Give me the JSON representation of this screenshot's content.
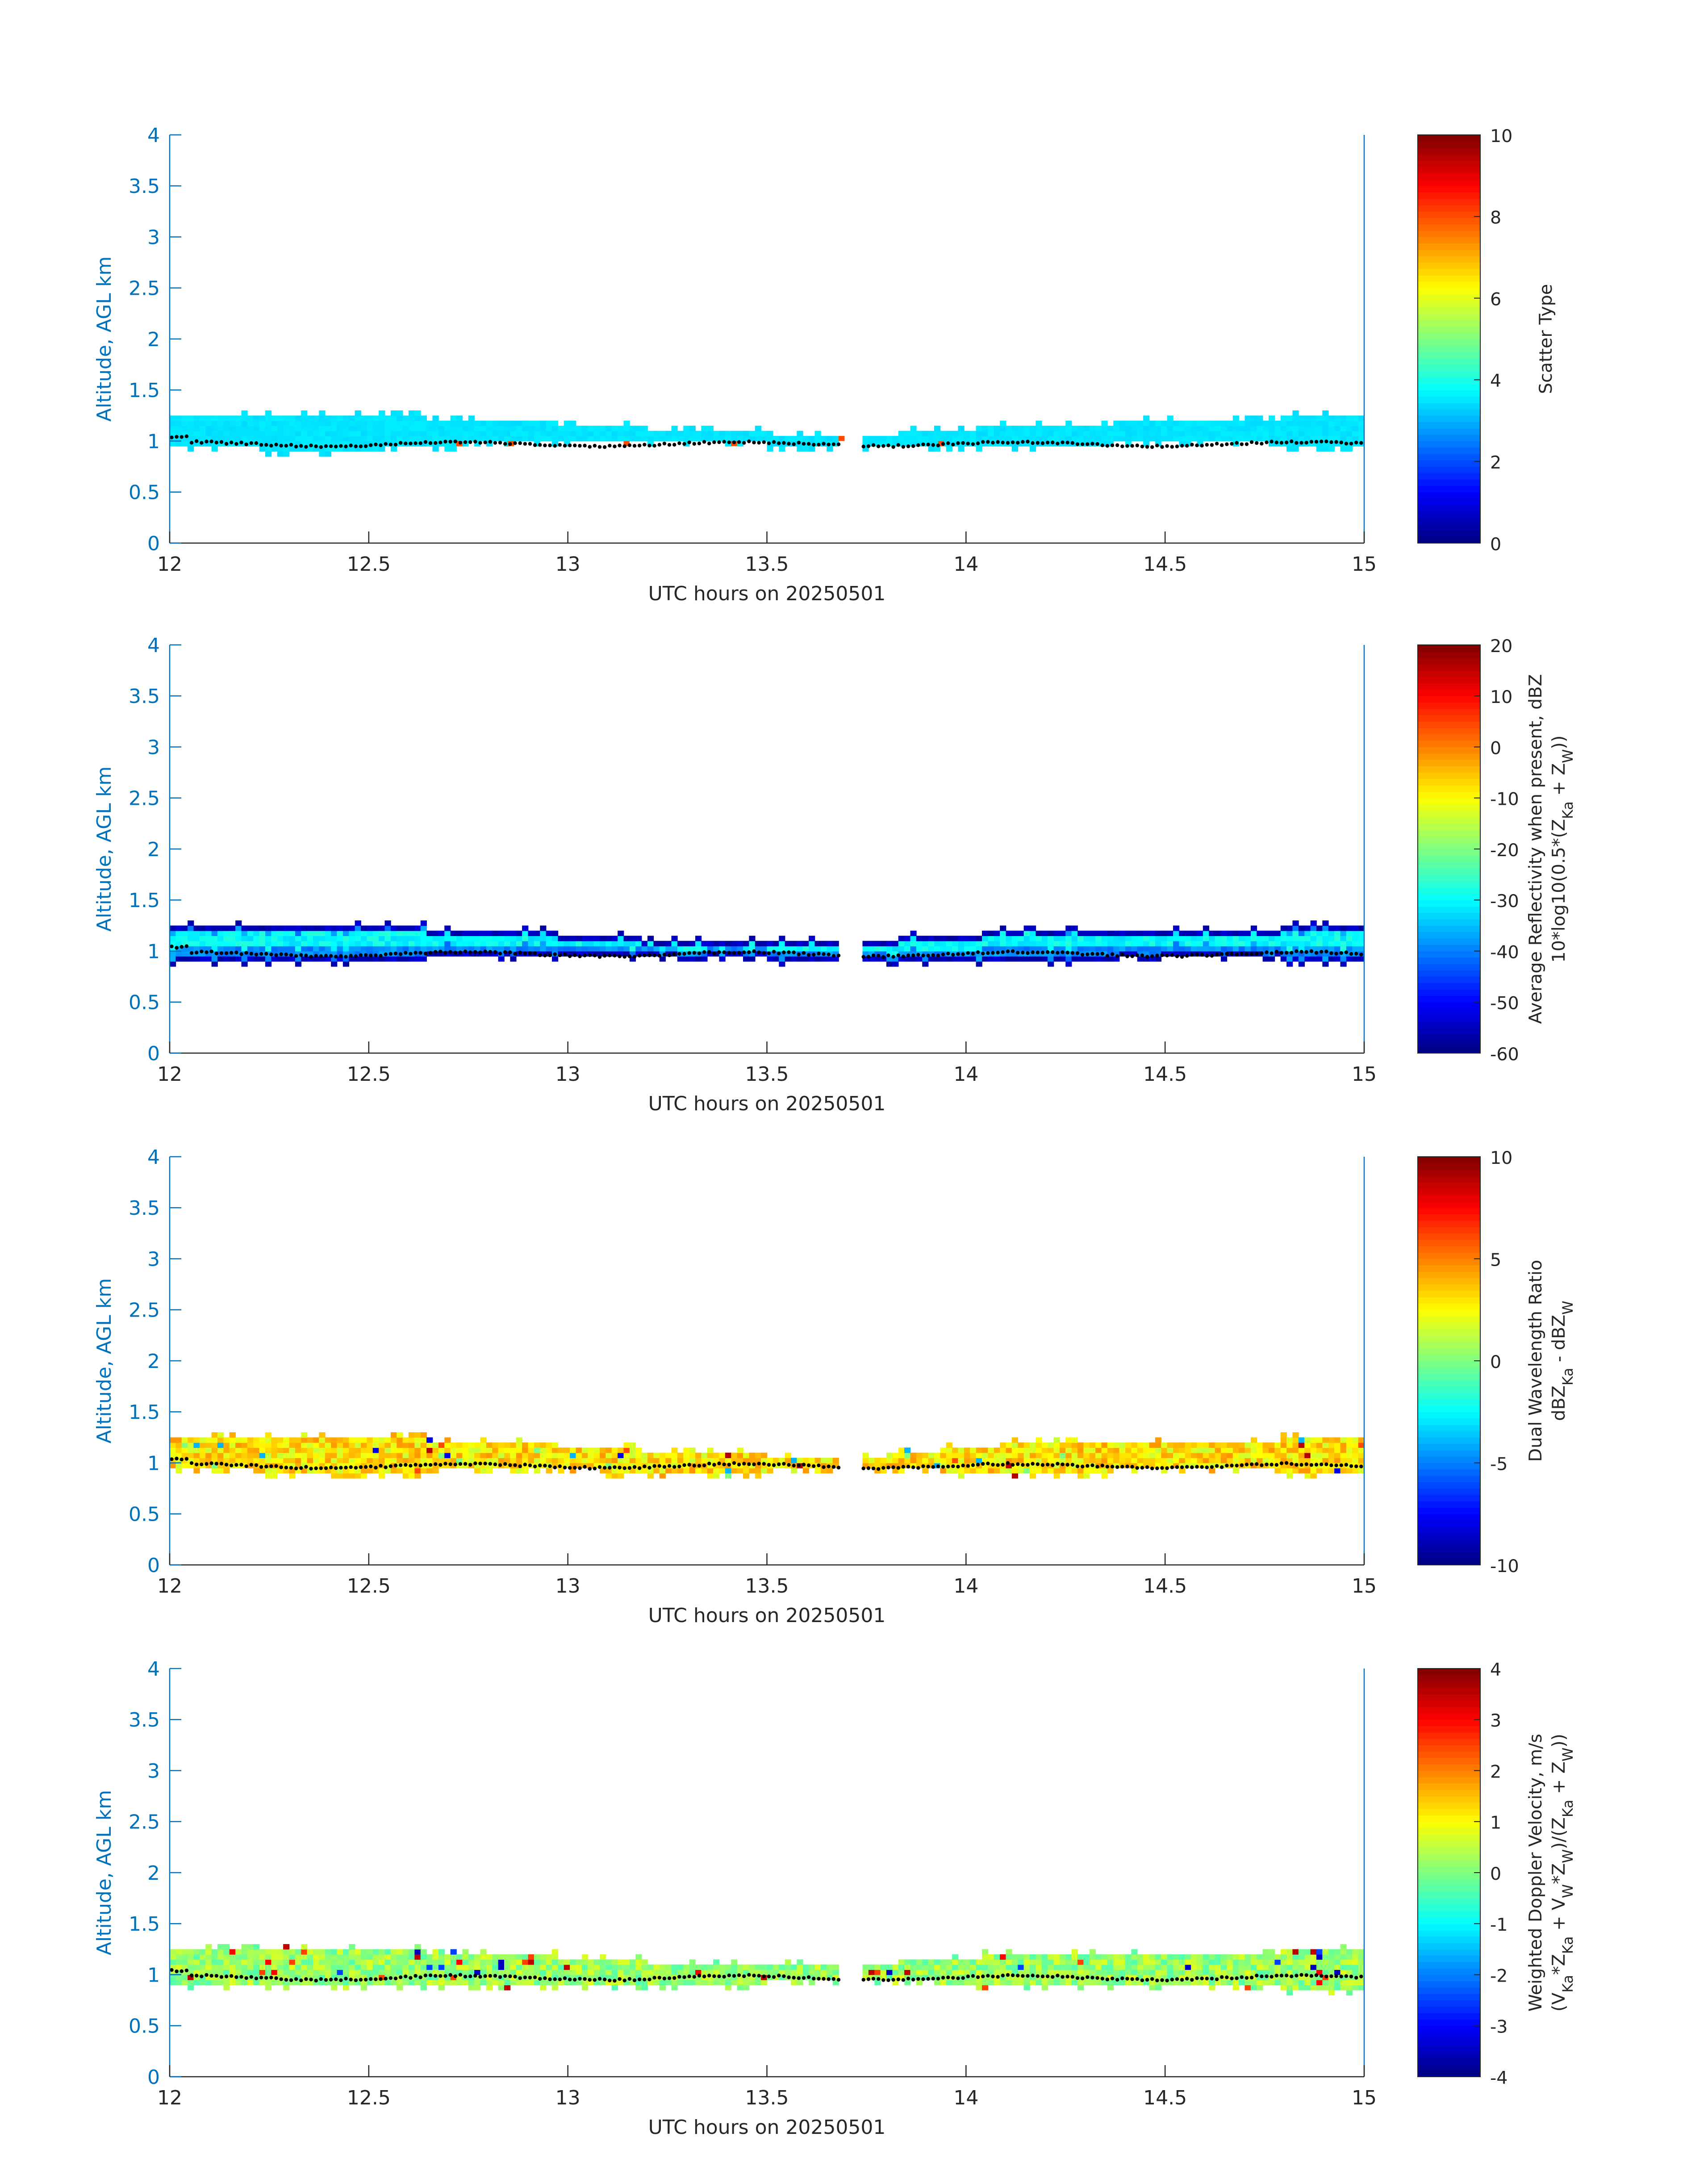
{
  "figure": {
    "colors": {
      "axis": "#0072bd",
      "text": "#262626",
      "gap_dots": "#000000"
    }
  },
  "chart_data": [
    {
      "type": "heatmap",
      "title": "",
      "xlabel": "UTC hours on 20250501",
      "ylabel": "Altitude, AGL km",
      "xlim": [
        12,
        15
      ],
      "ylim": [
        0,
        4
      ],
      "xticks": [
        "12",
        "12.5",
        "13",
        "13.5",
        "14",
        "14.5",
        "15"
      ],
      "yticks": [
        "0",
        "0.5",
        "1",
        "1.5",
        "2",
        "2.5",
        "3",
        "3.5",
        "4"
      ],
      "colorbar": {
        "label_lines": [
          "Scatter Type"
        ],
        "clim": [
          0,
          10
        ],
        "ticks": [
          "0",
          "2",
          "4",
          "6",
          "8",
          "10"
        ]
      },
      "layer": {
        "base_km": [
          0.95,
          0.9,
          1.0,
          1.0,
          0.95,
          0.95,
          1.0,
          0.95
        ],
        "top_km": [
          1.25,
          1.25,
          1.2,
          1.1,
          1.05,
          1.15,
          1.2,
          1.25
        ],
        "gaps_hr": [
          [
            13.69,
            13.74
          ]
        ]
      },
      "dominant_value": 3.5,
      "noise": 0.1,
      "sparse_values": [
        {
          "x": 12.72,
          "y": 0.95,
          "v": 8
        },
        {
          "x": 12.85,
          "y": 0.95,
          "v": 8
        },
        {
          "x": 13.14,
          "y": 0.95,
          "v": 8
        },
        {
          "x": 13.41,
          "y": 0.95,
          "v": 8
        },
        {
          "x": 13.68,
          "y": 1.0,
          "v": 8
        },
        {
          "x": 13.93,
          "y": 0.95,
          "v": 8
        }
      ],
      "cloud_base_km": 0.97
    },
    {
      "type": "heatmap",
      "title": "",
      "xlabel": "UTC hours on 20250501",
      "ylabel": "Altitude, AGL km",
      "xlim": [
        12,
        15
      ],
      "ylim": [
        0,
        4
      ],
      "xticks": [
        "12",
        "12.5",
        "13",
        "13.5",
        "14",
        "14.5",
        "15"
      ],
      "yticks": [
        "0",
        "0.5",
        "1",
        "1.5",
        "2",
        "2.5",
        "3",
        "3.5",
        "4"
      ],
      "colorbar": {
        "label_lines": [
          "Average Reflectivity when present, dBZ",
          "10*log10(0.5*(Z_Ka + Z_W))"
        ],
        "clim": [
          -60,
          20
        ],
        "ticks": [
          "-60",
          "-50",
          "-40",
          "-30",
          "-20",
          "-10",
          "0",
          "10",
          "20"
        ]
      },
      "layer": {
        "base_km": [
          0.9,
          0.9,
          0.95,
          0.95,
          0.9,
          0.9,
          0.95,
          0.9
        ],
        "top_km": [
          1.25,
          1.25,
          1.2,
          1.1,
          1.1,
          1.2,
          1.2,
          1.25
        ],
        "gaps_hr": [
          [
            13.69,
            13.73
          ]
        ]
      },
      "profile": "reflectivity",
      "cloud_base_km": 0.97
    },
    {
      "type": "heatmap",
      "title": "",
      "xlabel": "UTC hours on 20250501",
      "ylabel": "Altitude, AGL km",
      "xlim": [
        12,
        15
      ],
      "ylim": [
        0,
        4
      ],
      "xticks": [
        "12",
        "12.5",
        "13",
        "13.5",
        "14",
        "14.5",
        "15"
      ],
      "yticks": [
        "0",
        "0.5",
        "1",
        "1.5",
        "2",
        "2.5",
        "3",
        "3.5",
        "4"
      ],
      "colorbar": {
        "label_lines": [
          "Dual Wavelength Ratio",
          "dBZ_Ka - dBZ_W"
        ],
        "clim": [
          -10,
          10
        ],
        "ticks": [
          "-10",
          "-5",
          "0",
          "5",
          "10"
        ]
      },
      "layer": {
        "base_km": [
          0.95,
          0.9,
          0.95,
          0.9,
          0.95,
          0.9,
          0.95,
          0.9
        ],
        "top_km": [
          1.25,
          1.25,
          1.2,
          1.1,
          1.05,
          1.2,
          1.2,
          1.25
        ],
        "gaps_hr": [
          [
            13.69,
            13.73
          ]
        ]
      },
      "dominant_value": 3,
      "noise": 0.8,
      "speckle": [
        6,
        9,
        -4,
        -8,
        0
      ],
      "cloud_base_km": 0.97
    },
    {
      "type": "heatmap",
      "title": "",
      "xlabel": "UTC hours on 20250501",
      "ylabel": "Altitude, AGL km",
      "xlim": [
        12,
        15
      ],
      "ylim": [
        0,
        4
      ],
      "xticks": [
        "12",
        "12.5",
        "13",
        "13.5",
        "14",
        "14.5",
        "15"
      ],
      "yticks": [
        "0",
        "0.5",
        "1",
        "1.5",
        "2",
        "2.5",
        "3",
        "3.5",
        "4"
      ],
      "colorbar": {
        "label_lines": [
          "Weighted Doppler Velocity, m/s",
          "(V_Ka*Z_Ka + V_W*Z_W)/(Z_Ka + Z_W))"
        ],
        "clim": [
          -4,
          4
        ],
        "ticks": [
          "-4",
          "-3",
          "-2",
          "-1",
          "0",
          "1",
          "2",
          "3",
          "4"
        ]
      },
      "layer": {
        "base_km": [
          0.9,
          0.9,
          0.9,
          0.9,
          0.95,
          0.9,
          0.9,
          0.85
        ],
        "top_km": [
          1.25,
          1.25,
          1.2,
          1.1,
          1.1,
          1.2,
          1.2,
          1.25
        ],
        "gaps_hr": [
          [
            13.69,
            13.73
          ]
        ]
      },
      "dominant_value": 0.2,
      "noise": 0.7,
      "speckle": [
        3.5,
        -3.5,
        2.5,
        -2.5,
        3
      ],
      "cloud_base_km": 0.97
    }
  ]
}
